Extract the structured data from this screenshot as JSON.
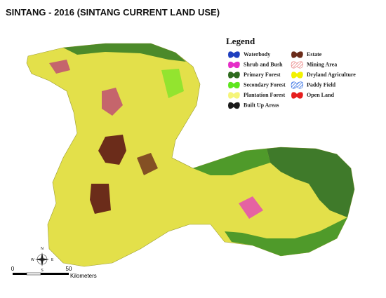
{
  "title": "SINTANG - 2016 (SINTANG CURRENT LAND USE)",
  "legend": {
    "title": "Legend",
    "items": [
      {
        "label": "Waterbody",
        "color": "#1f3fbf"
      },
      {
        "label": "Shrub and Bush",
        "color": "#e62ec8"
      },
      {
        "label": "Primary Forest",
        "color": "#2e6b1e"
      },
      {
        "label": "Secondary Forest",
        "color": "#5ee61e"
      },
      {
        "label": "Plantation Forest",
        "color": "#f5f57a"
      },
      {
        "label": "Built Up Areas",
        "color": "#1a1a1a"
      },
      {
        "label": "Estate",
        "color": "#6b2c1a"
      },
      {
        "label": "Mining Area",
        "color": "#e87a7a",
        "hatch": true
      },
      {
        "label": "Dryland Agriculture",
        "color": "#f2f200"
      },
      {
        "label": "Paddy Field",
        "color": "#1f5fe0",
        "hatch": true
      },
      {
        "label": "Open Land",
        "color": "#e61e1e"
      }
    ]
  },
  "north_arrow": {
    "n": "N",
    "s": "S",
    "e": "E",
    "w": "W"
  },
  "scale_bar": {
    "start": "0",
    "end": "50",
    "unit": "Kilometers"
  }
}
